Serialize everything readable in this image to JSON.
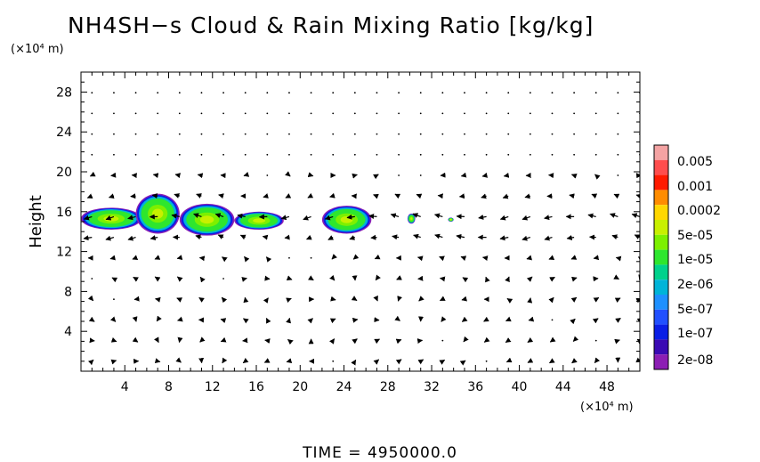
{
  "chart_data": {
    "type": "heatmap",
    "title": "NH4SH−s Cloud & Rain Mixing Ratio [kg/kg]",
    "ylabel": "Height",
    "x_unit_label": "(×10⁴ m)",
    "y_unit_label": "(×10⁴ m)",
    "xlim": [
      0,
      51
    ],
    "ylim": [
      0,
      30
    ],
    "xticks": [
      "4",
      "8",
      "12",
      "16",
      "20",
      "24",
      "28",
      "32",
      "36",
      "40",
      "44",
      "48"
    ],
    "yticks": [
      "4",
      "8",
      "12",
      "16",
      "20",
      "24",
      "28"
    ],
    "xtick_values": [
      4,
      8,
      12,
      16,
      20,
      24,
      28,
      32,
      36,
      40,
      44,
      48
    ],
    "ytick_values": [
      4,
      8,
      12,
      16,
      20,
      24,
      28
    ],
    "colorbar": {
      "labels": [
        "0.005",
        "0.001",
        "0.0002",
        "5e-05",
        "1e-05",
        "2e-06",
        "5e-07",
        "1e-07",
        "2e-08"
      ],
      "colors": [
        "#f4a3a3",
        "#ff4d4d",
        "#ff1a00",
        "#ff8c00",
        "#ffd700",
        "#c8f000",
        "#7df000",
        "#2ee62e",
        "#00d28c",
        "#00b4d8",
        "#1e90ff",
        "#2150ff",
        "#0a1ee6",
        "#3a0ab4",
        "#8c1eb4"
      ]
    },
    "cloud_regions": [
      {
        "x": [
          0,
          5.5
        ],
        "y": [
          14.2,
          16.4
        ]
      },
      {
        "x": [
          5,
          9
        ],
        "y": [
          13.8,
          17.8
        ]
      },
      {
        "x": [
          9,
          14
        ],
        "y": [
          13.6,
          16.8
        ]
      },
      {
        "x": [
          14,
          18.5
        ],
        "y": [
          14.2,
          16.0
        ]
      },
      {
        "x": [
          22,
          26.5
        ],
        "y": [
          13.8,
          16.6
        ]
      },
      {
        "x": [
          29.8,
          30.5
        ],
        "y": [
          14.8,
          15.8
        ]
      },
      {
        "x": [
          33.5,
          34
        ],
        "y": [
          15.0,
          15.4
        ]
      }
    ],
    "vector_field": "wind arrows"
  },
  "footer": {
    "time_label": "TIME  =  4950000.0"
  }
}
